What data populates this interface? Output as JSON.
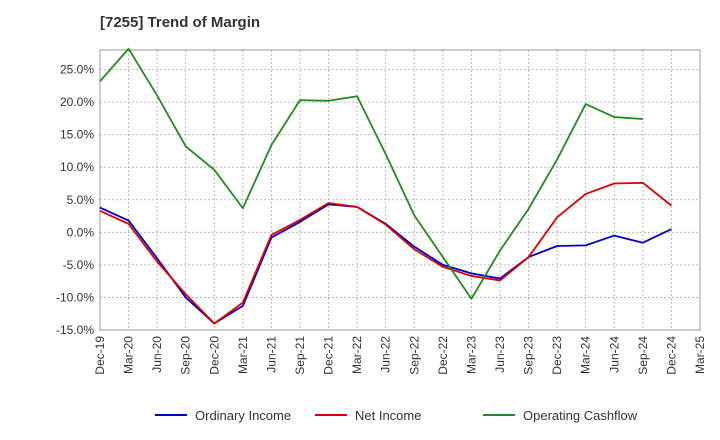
{
  "chart_data": {
    "type": "line",
    "title": "[7255]  Trend of Margin",
    "x_labels": [
      "Dec-19",
      "Mar-20",
      "Jun-20",
      "Sep-20",
      "Dec-20",
      "Mar-21",
      "Jun-21",
      "Sep-21",
      "Dec-21",
      "Mar-22",
      "Jun-22",
      "Sep-22",
      "Dec-22",
      "Mar-23",
      "Jun-23",
      "Sep-23",
      "Dec-23",
      "Mar-24",
      "Jun-24",
      "Sep-24",
      "Dec-24",
      "Mar-25"
    ],
    "y_ticks": [
      25,
      20,
      15,
      10,
      5,
      0,
      -5,
      -10,
      -15
    ],
    "y_tick_labels": [
      "25.0%",
      "20.0%",
      "15.0%",
      "10.0%",
      "5.0%",
      "0.0%",
      "-5.0%",
      "-10.0%",
      "-15.0%"
    ],
    "ylim": [
      -15,
      28
    ],
    "grid": true,
    "legend_position": "bottom",
    "series": [
      {
        "name": "Ordinary Income",
        "color": "#0000cc",
        "values": [
          3.8,
          1.8,
          -4.0,
          -10.0,
          -14.0,
          -11.3,
          -0.8,
          1.6,
          4.3,
          3.9,
          1.3,
          -2.2,
          -5.0,
          -6.3,
          -7.1,
          -3.8,
          -2.1,
          -2.0,
          -0.5,
          -1.6,
          0.5,
          null
        ]
      },
      {
        "name": "Net Income",
        "color": "#dd0000",
        "values": [
          3.3,
          1.3,
          -4.5,
          -9.5,
          -14.0,
          -10.8,
          -0.4,
          1.9,
          4.5,
          3.9,
          1.2,
          -2.6,
          -5.3,
          -6.7,
          -7.4,
          -3.8,
          2.3,
          5.9,
          7.5,
          7.6,
          4.1,
          null
        ]
      },
      {
        "name": "Operating Cashflow",
        "color": "#228B22",
        "values": [
          23.2,
          28.2,
          21.0,
          13.2,
          9.6,
          3.7,
          13.4,
          20.3,
          20.2,
          20.9,
          12.0,
          2.6,
          -3.8,
          -10.2,
          -2.8,
          3.6,
          11.2,
          19.7,
          17.7,
          17.4,
          null,
          null
        ]
      }
    ]
  }
}
